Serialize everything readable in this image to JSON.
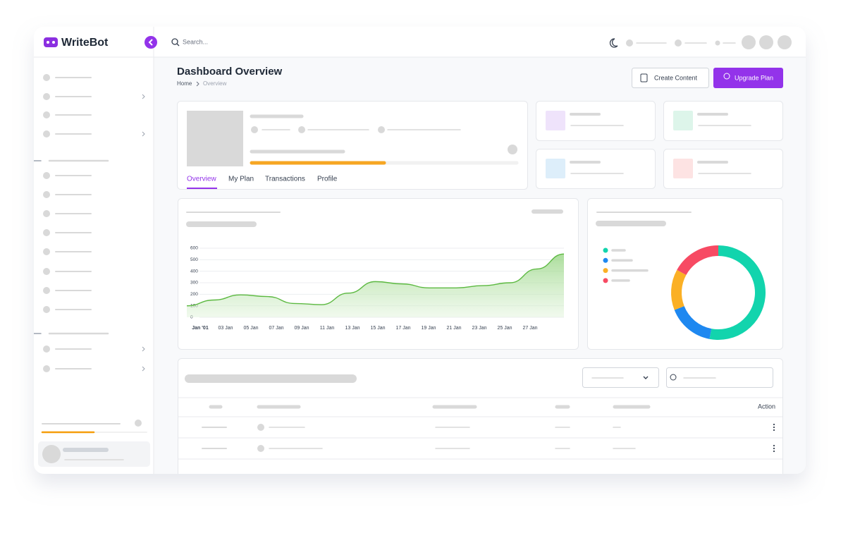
{
  "app": {
    "brand": "WriteBot",
    "search_placeholder": "Search..."
  },
  "header": {
    "title": "Dashboard Overview",
    "breadcrumb": [
      "Home",
      "Overview"
    ],
    "buttons": [
      "Create Content",
      "Upgrade Plan"
    ]
  },
  "profile_tabs": [
    "Overview",
    "My Plan",
    "Transactions",
    "Profile"
  ],
  "table": {
    "action_header": "Action"
  },
  "chart_data": [
    {
      "type": "area",
      "color": "#5cb941",
      "categories": [
        "Jan '01",
        "03 Jan",
        "05 Jan",
        "07 Jan",
        "09 Jan",
        "11 Jan",
        "13 Jan",
        "15 Jan",
        "17 Jan",
        "19 Jan",
        "21 Jan",
        "23 Jan",
        "25 Jan",
        "27 Jan",
        null
      ],
      "values": [
        100,
        150,
        195,
        180,
        120,
        110,
        210,
        310,
        290,
        255,
        255,
        275,
        300,
        420,
        550
      ],
      "ylim": [
        0,
        600
      ],
      "yticks": [
        0,
        100,
        200,
        300,
        400,
        500,
        600
      ],
      "grid": true
    },
    {
      "type": "donut",
      "values": [
        53,
        16,
        14,
        17
      ],
      "colors": [
        "#12d4ad",
        "#1e88f0",
        "#fbb025",
        "#f74a63"
      ]
    }
  ]
}
